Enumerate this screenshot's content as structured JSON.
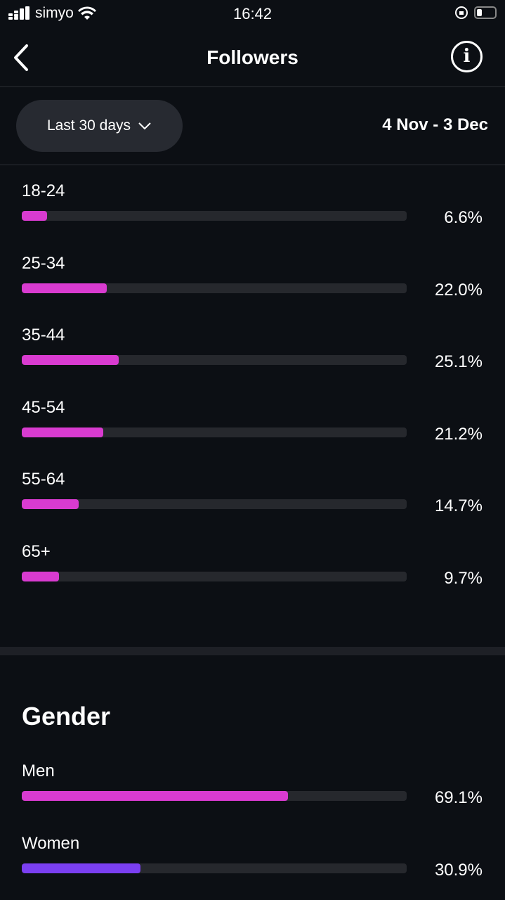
{
  "status_bar": {
    "carrier": "simyo",
    "time": "16:42",
    "icons": [
      "signal-icon",
      "wifi-icon",
      "rotation-lock-icon",
      "battery-icon"
    ]
  },
  "header": {
    "title": "Followers",
    "back_icon": "chevron-left-icon",
    "info_icon": "info-icon"
  },
  "filter": {
    "period_label": "Last 30 days",
    "date_range": "4 Nov - 3 Dec"
  },
  "colors": {
    "accent_pink": "#d93bd0",
    "accent_purple": "#7b3ff2",
    "track": "#26282d",
    "background": "#0c0f14"
  },
  "age": {
    "items": [
      {
        "label": "18-24",
        "value": 6.6,
        "display": "6.6%"
      },
      {
        "label": "25-34",
        "value": 22.0,
        "display": "22.0%"
      },
      {
        "label": "35-44",
        "value": 25.1,
        "display": "25.1%"
      },
      {
        "label": "45-54",
        "value": 21.2,
        "display": "21.2%"
      },
      {
        "label": "55-64",
        "value": 14.7,
        "display": "14.7%"
      },
      {
        "label": "65+",
        "value": 9.7,
        "display": "9.7%"
      }
    ]
  },
  "gender": {
    "title": "Gender",
    "items": [
      {
        "label": "Men",
        "value": 69.1,
        "display": "69.1%",
        "color": "#d93bd0"
      },
      {
        "label": "Women",
        "value": 30.9,
        "display": "30.9%",
        "color": "#7b3ff2"
      }
    ]
  }
}
